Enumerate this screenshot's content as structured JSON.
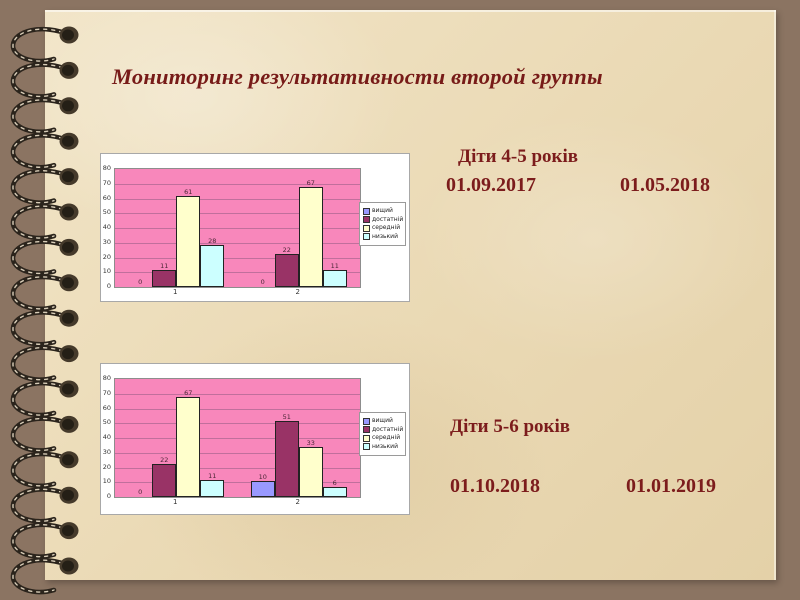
{
  "slide": {
    "title": "Мониторинг результативности второй группы"
  },
  "captions": [
    {
      "heading": "Діти 4-5 років",
      "date_start": "01.09.2017",
      "date_end": "01.05.2018"
    },
    {
      "heading": "Діти 5-6 років",
      "date_start": "01.10.2018",
      "date_end": "01.01.2019"
    }
  ],
  "chart_data": [
    {
      "type": "bar",
      "title": "",
      "categories": [
        "1",
        "2"
      ],
      "series": [
        {
          "name": "вищий",
          "color": "#9999ff",
          "values": [
            0,
            0
          ]
        },
        {
          "name": "достатній",
          "color": "#993366",
          "values": [
            11,
            22
          ]
        },
        {
          "name": "середній",
          "color": "#ffffcc",
          "values": [
            61,
            67
          ]
        },
        {
          "name": "низький",
          "color": "#ccffff",
          "values": [
            28,
            11
          ]
        }
      ],
      "ylim": [
        0,
        80
      ],
      "ytick_step": 10,
      "grid": true,
      "legend_position": "right",
      "plot_bg": "#f887bb"
    },
    {
      "type": "bar",
      "title": "",
      "categories": [
        "1",
        "2"
      ],
      "series": [
        {
          "name": "вищий",
          "color": "#9999ff",
          "values": [
            0,
            10
          ]
        },
        {
          "name": "достатній",
          "color": "#993366",
          "values": [
            22,
            51
          ]
        },
        {
          "name": "середній",
          "color": "#ffffcc",
          "values": [
            67,
            33
          ]
        },
        {
          "name": "низький",
          "color": "#ccffff",
          "values": [
            11,
            6
          ]
        }
      ],
      "ylim": [
        0,
        80
      ],
      "ytick_step": 10,
      "grid": true,
      "legend_position": "right",
      "plot_bg": "#f887bb"
    }
  ],
  "colors": {
    "background": "#8b7462",
    "paper": "#ead9b4",
    "text": "#7c1c1c",
    "plot_bg": "#f887bb",
    "gridline": "#c06f9c"
  }
}
